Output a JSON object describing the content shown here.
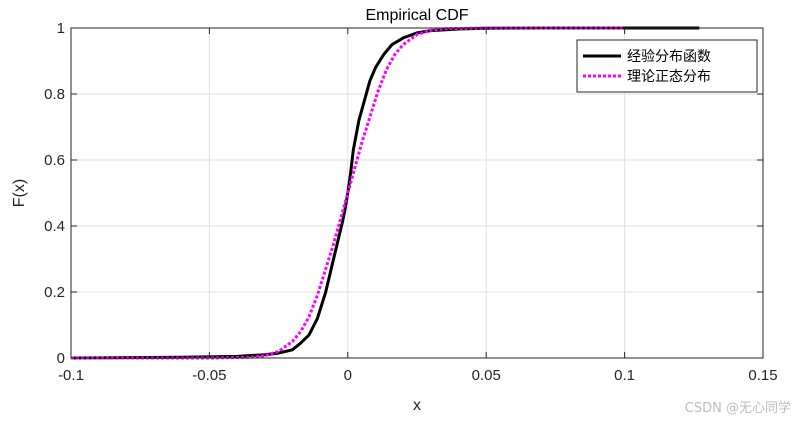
{
  "chart_data": {
    "type": "line",
    "title": "Empirical CDF",
    "xlabel": "x",
    "ylabel": "F(x)",
    "xlim": [
      -0.1,
      0.15
    ],
    "ylim": [
      0,
      1
    ],
    "xticks": [
      "-0.1",
      "-0.05",
      "0",
      "0.05",
      "0.1",
      "0.15"
    ],
    "yticks": [
      "0",
      "0.2",
      "0.4",
      "0.6",
      "0.8",
      "1"
    ],
    "grid": true,
    "legend": "top-right",
    "series": [
      {
        "name": "经验分布函数",
        "color": "#000000",
        "style": "solid",
        "x": [
          -0.1,
          -0.06,
          -0.04,
          -0.03,
          -0.025,
          -0.02,
          -0.017,
          -0.014,
          -0.011,
          -0.008,
          -0.006,
          -0.004,
          -0.002,
          -0.001,
          0,
          0.001,
          0.002,
          0.004,
          0.006,
          0.008,
          0.01,
          0.013,
          0.016,
          0.02,
          0.025,
          0.03,
          0.04,
          0.05,
          0.07,
          0.1,
          0.127
        ],
        "y": [
          0,
          0.002,
          0.005,
          0.01,
          0.015,
          0.025,
          0.045,
          0.07,
          0.12,
          0.2,
          0.27,
          0.34,
          0.41,
          0.45,
          0.5,
          0.56,
          0.63,
          0.72,
          0.78,
          0.84,
          0.88,
          0.92,
          0.95,
          0.97,
          0.985,
          0.992,
          0.997,
          0.999,
          1,
          1,
          1
        ]
      },
      {
        "name": "理论正态分布",
        "color": "#ff00ff",
        "style": "dotted",
        "x": [
          -0.1,
          -0.05,
          -0.035,
          -0.03,
          -0.025,
          -0.02,
          -0.017,
          -0.014,
          -0.011,
          -0.008,
          -0.005,
          -0.002,
          0,
          0.002,
          0.005,
          0.008,
          0.011,
          0.014,
          0.017,
          0.02,
          0.025,
          0.03,
          0.035,
          0.05,
          0.1
        ],
        "y": [
          0,
          0.0,
          0.002,
          0.007,
          0.02,
          0.05,
          0.08,
          0.125,
          0.19,
          0.27,
          0.35,
          0.44,
          0.5,
          0.56,
          0.65,
          0.73,
          0.81,
          0.875,
          0.92,
          0.95,
          0.98,
          0.993,
          0.998,
          1,
          1
        ]
      }
    ]
  },
  "watermark": "CSDN @无心同学"
}
